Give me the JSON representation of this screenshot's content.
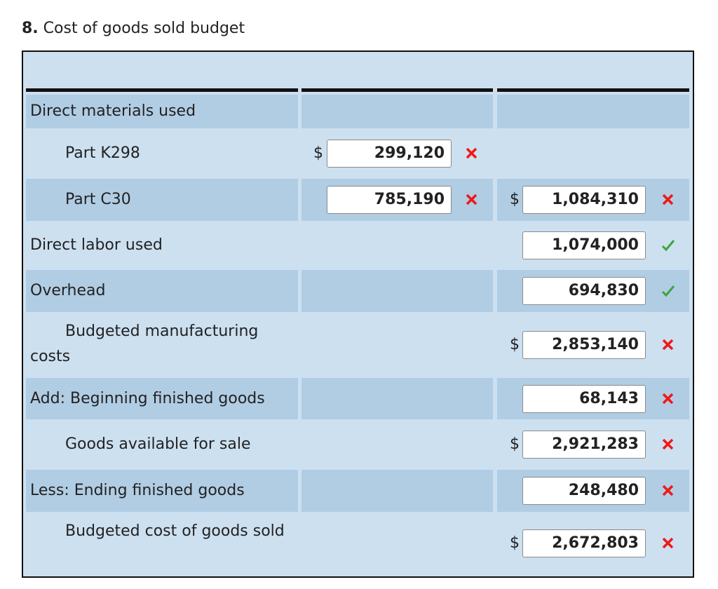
{
  "title": {
    "number": "8.",
    "text": "Cost of goods sold budget"
  },
  "table": {
    "rows": [
      {
        "label": "Direct materials used"
      },
      {
        "label": "Part K298",
        "col1": {
          "prefix": "$",
          "value": "299,120"
        }
      },
      {
        "label": "Part C30",
        "col1": {
          "value": "785,190"
        },
        "col2": {
          "prefix": "$",
          "value": "1,084,310"
        }
      },
      {
        "label": "Direct labor used",
        "col2": {
          "value": "1,074,000"
        }
      },
      {
        "label": "Overhead",
        "col2": {
          "value": "694,830"
        }
      },
      {
        "label": "Budgeted manufacturing costs",
        "col2": {
          "prefix": "$",
          "value": "2,853,140"
        }
      },
      {
        "label": "Add: Beginning finished goods",
        "col2": {
          "value": "68,143"
        }
      },
      {
        "label": "Goods available for sale",
        "col2": {
          "prefix": "$",
          "value": "2,921,283"
        }
      },
      {
        "label": "Less: Ending finished goods",
        "col2": {
          "value": "248,480"
        }
      },
      {
        "label": "Budgeted cost of goods sold",
        "col2": {
          "prefix": "$",
          "value": "2,672,803"
        }
      }
    ]
  }
}
